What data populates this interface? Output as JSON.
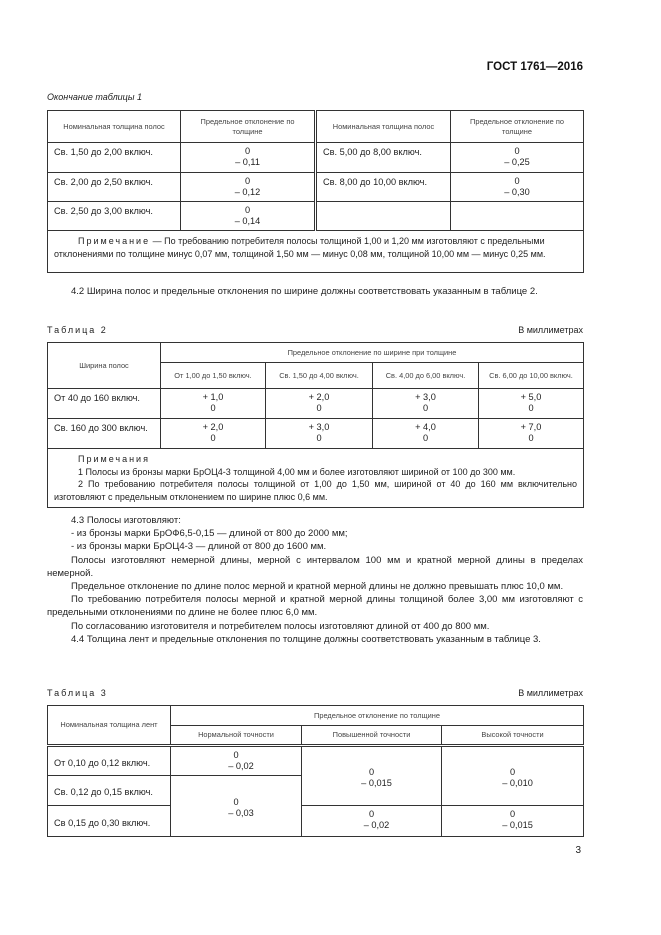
{
  "header": {
    "standard": "ГОСТ 1761—2016"
  },
  "table1": {
    "caption": "Окончание таблицы 1",
    "headers": [
      "Номинальная толщина полос",
      "Предельное отклонение по толщине",
      "Номинальная толщина полос",
      "Предельное отклонение по толщине"
    ],
    "rows": [
      [
        "Св. 1,50 до 2,00 включ.",
        "0",
        "– 0,11",
        "Св. 5,00 до 8,00 включ.",
        "0",
        "– 0,25"
      ],
      [
        "Св. 2,00 до 2,50 включ.",
        "0",
        "– 0,12",
        "Св. 8,00 до 10,00 включ.",
        "0",
        "– 0,30"
      ],
      [
        "Св. 2,50 до 3,00 включ.",
        "0",
        "– 0,14",
        "",
        "",
        ""
      ]
    ],
    "note_label": "Примечание",
    "note": " — По требованию потребителя полосы толщиной 1,00 и 1,20 мм изготовляют с предельными отклонениями по толщине минус 0,07 мм, толщиной 1,50 мм — минус 0,08 мм, толщиной 10,00 мм — минус 0,25 мм."
  },
  "para_4_2": "4.2 Ширина полос и предельные отклонения по ширине должны соответствовать указанным в таблице 2.",
  "table2": {
    "caption": "Таблица 2",
    "units": "В миллиметрах",
    "header_width": "Ширина полос",
    "header_group": "Предельное отклонение по ширине при толщине",
    "subheaders": [
      "От 1,00 до 1,50 включ.",
      "Св. 1,50 до 4,00 включ.",
      "Св. 4,00 до 6,00 включ.",
      "Св. 6,00 до 10,00 включ."
    ],
    "rows": [
      {
        "width": "От 40 до 160 включ.",
        "values": [
          [
            "+ 1,0",
            "0"
          ],
          [
            "+ 2,0",
            "0"
          ],
          [
            "+ 3,0",
            "0"
          ],
          [
            "+ 5,0",
            "0"
          ]
        ]
      },
      {
        "width": "Св. 160 до 300 включ.",
        "values": [
          [
            "+ 2,0",
            "0"
          ],
          [
            "+ 3,0",
            "0"
          ],
          [
            "+ 4,0",
            "0"
          ],
          [
            "+ 7,0",
            "0"
          ]
        ]
      }
    ],
    "notes_label": "Примечания",
    "notes": [
      "1 Полосы из бронзы марки БрОЦ4-3 толщиной 4,00 мм и более изготовляют шириной от 100 до 300 мм.",
      "2 По требованию потребителя полосы толщиной от 1,00 до 1,50 мм, шириной от 40 до 160 мм включительно изготовляют с предельным отклонением по ширине плюс 0,6 мм."
    ]
  },
  "section_4_3": {
    "lines": [
      "4.3 Полосы изготовляют:",
      "- из бронзы марки БрОФ6,5-0,15 — длиной от 800 до 2000 мм;",
      "- из бронзы марки БрОЦ4-3 — длиной от 800 до 1600 мм."
    ],
    "paragraphs": [
      "Полосы изготовляют немерной длины, мерной с интервалом 100 мм и кратной мерной длины в пределах немерной.",
      "Предельное отклонение по длине полос мерной и кратной мерной длины не должно превышать плюс 10,0 мм.",
      "По требованию потребителя полосы мерной и кратной мерной длины толщиной более 3,00 мм изготовляют с предельными отклонениями по длине не более плюс 6,0 мм.",
      "По согласованию изготовителя и потребителем полосы изготовляют длиной от 400 до 800 мм.",
      "4.4 Толщина лент и предельные отклонения по толщине должны соответствовать указанным в таблице 3."
    ]
  },
  "table3": {
    "caption": "Таблица 3",
    "units": "В миллиметрах",
    "header_thickness": "Номинальная толщина лент",
    "header_group": "Предельное отклонение по толщине",
    "subheaders": [
      "Нормальной точности",
      "Повышенной точности",
      "Высокой точности"
    ],
    "rows": [
      "От 0,10 до 0,12 включ.",
      "Св. 0,12 до 0,15 включ.",
      "Св 0,15 до 0,30 включ."
    ],
    "normal": [
      [
        "0",
        "– 0,02"
      ],
      [
        "0",
        "– 0,03"
      ]
    ],
    "increased": [
      [
        "0",
        "– 0,015"
      ],
      [
        "0",
        "– 0,02"
      ]
    ],
    "high": [
      [
        "0",
        "– 0,010"
      ],
      [
        "0",
        "– 0,015"
      ]
    ]
  },
  "page_number": "3"
}
